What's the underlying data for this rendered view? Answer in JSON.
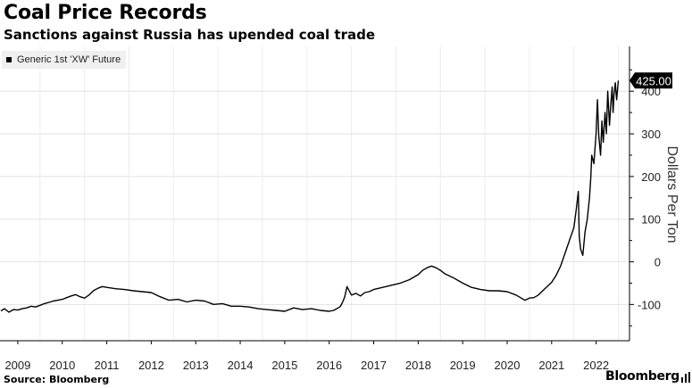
{
  "header": {
    "title": "Coal Price Records",
    "subtitle": "Sanctions against Russia has upended coal trade"
  },
  "footer": {
    "source": "Source: Bloomberg",
    "brand": "Bloomberg"
  },
  "chart_data": {
    "type": "line",
    "title": "Coal Price Records",
    "subtitle": "Sanctions against Russia has upended coal trade",
    "xlabel": "",
    "ylabel": "Dollars Per Ton",
    "xlim": [
      2008.6,
      2022.75
    ],
    "ylim": [
      -185,
      505
    ],
    "x_ticks": [
      2009,
      2010,
      2011,
      2012,
      2013,
      2014,
      2015,
      2016,
      2017,
      2018,
      2019,
      2020,
      2021,
      2022
    ],
    "x_tick_labels": [
      "2009",
      "2010",
      "2011",
      "2012",
      "2013",
      "2014",
      "2015",
      "2016",
      "2017",
      "2018",
      "2019",
      "2020",
      "2021",
      "2022"
    ],
    "y_ticks": [
      -100,
      0,
      100,
      200,
      300,
      400
    ],
    "y_tick_labels": [
      "-100",
      "0",
      "100",
      "200",
      "300",
      "400"
    ],
    "grid": true,
    "legend_position": "top-left",
    "last_value_label": "425.00",
    "series": [
      {
        "name": "Generic 1st 'XW' Future",
        "color": "#000000",
        "x": [
          2008.62,
          2008.7,
          2008.8,
          2008.9,
          2009.0,
          2009.1,
          2009.2,
          2009.3,
          2009.4,
          2009.5,
          2009.6,
          2009.7,
          2009.8,
          2009.9,
          2010.0,
          2010.1,
          2010.2,
          2010.3,
          2010.4,
          2010.5,
          2010.6,
          2010.7,
          2010.8,
          2010.9,
          2011.0,
          2011.2,
          2011.4,
          2011.6,
          2011.8,
          2012.0,
          2012.2,
          2012.4,
          2012.6,
          2012.8,
          2013.0,
          2013.2,
          2013.4,
          2013.6,
          2013.8,
          2014.0,
          2014.2,
          2014.4,
          2014.6,
          2014.8,
          2015.0,
          2015.2,
          2015.4,
          2015.6,
          2015.8,
          2016.0,
          2016.1,
          2016.2,
          2016.25,
          2016.3,
          2016.35,
          2016.4,
          2016.5,
          2016.6,
          2016.7,
          2016.8,
          2016.9,
          2017.0,
          2017.2,
          2017.4,
          2017.6,
          2017.8,
          2018.0,
          2018.1,
          2018.2,
          2018.3,
          2018.4,
          2018.5,
          2018.6,
          2018.8,
          2019.0,
          2019.2,
          2019.4,
          2019.6,
          2019.8,
          2020.0,
          2020.2,
          2020.3,
          2020.4,
          2020.5,
          2020.6,
          2020.7,
          2020.8,
          2020.9,
          2021.0,
          2021.1,
          2021.2,
          2021.3,
          2021.4,
          2021.5,
          2021.55,
          2021.6,
          2021.62,
          2021.65,
          2021.7,
          2021.75,
          2021.8,
          2021.85,
          2021.88,
          2021.9,
          2021.95,
          2022.0,
          2022.03,
          2022.06,
          2022.1,
          2022.13,
          2022.16,
          2022.2,
          2022.23,
          2022.26,
          2022.3,
          2022.33,
          2022.36,
          2022.38,
          2022.4,
          2022.43,
          2022.46,
          2022.5
        ],
        "y": [
          -115,
          -110,
          -118,
          -112,
          -113,
          -110,
          -108,
          -104,
          -106,
          -102,
          -98,
          -95,
          -92,
          -90,
          -88,
          -84,
          -80,
          -77,
          -82,
          -85,
          -78,
          -68,
          -62,
          -58,
          -60,
          -63,
          -65,
          -68,
          -70,
          -72,
          -82,
          -90,
          -88,
          -94,
          -90,
          -92,
          -100,
          -98,
          -104,
          -104,
          -106,
          -110,
          -112,
          -114,
          -116,
          -108,
          -112,
          -110,
          -114,
          -116,
          -114,
          -108,
          -105,
          -95,
          -82,
          -58,
          -78,
          -74,
          -80,
          -72,
          -70,
          -65,
          -60,
          -55,
          -50,
          -42,
          -30,
          -20,
          -14,
          -10,
          -14,
          -20,
          -28,
          -38,
          -50,
          -60,
          -65,
          -68,
          -68,
          -70,
          -78,
          -84,
          -90,
          -85,
          -84,
          -78,
          -68,
          -58,
          -48,
          -32,
          -10,
          20,
          50,
          80,
          120,
          165,
          60,
          30,
          15,
          70,
          100,
          150,
          200,
          250,
          230,
          300,
          380,
          295,
          250,
          330,
          280,
          350,
          300,
          400,
          320,
          370,
          410,
          350,
          390,
          420,
          380,
          425
        ]
      }
    ]
  }
}
